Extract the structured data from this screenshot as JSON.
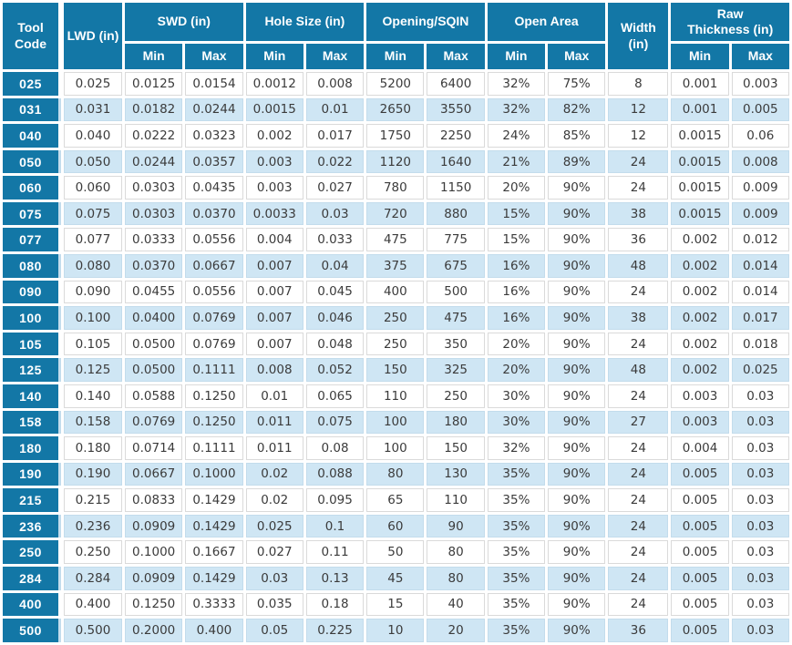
{
  "colors": {
    "header_teal": "#1377a6",
    "row_alt_blue": "#cfe6f4",
    "row_white": "#ffffff",
    "cell_border": "#dadada",
    "data_text": "#3b3b3b",
    "header_text": "#ffffff"
  },
  "table": {
    "header": {
      "tool_code": "Tool Code",
      "lwd": "LWD (in)",
      "swd": "SWD (in)",
      "hole_size": "Hole Size (in)",
      "opening_sqin": "Opening/SQIN",
      "open_area": "Open Area",
      "width": "Width (in)",
      "raw_thickness_line1": "Raw",
      "raw_thickness_line2": "Thickness (in)",
      "min_label": "Min",
      "max_label": "Max"
    },
    "rows": [
      [
        "025",
        "0.025",
        "0.0125",
        "0.0154",
        "0.0012",
        "0.008",
        "5200",
        "6400",
        "32%",
        "75%",
        "8",
        "0.001",
        "0.003"
      ],
      [
        "031",
        "0.031",
        "0.0182",
        "0.0244",
        "0.0015",
        "0.01",
        "2650",
        "3550",
        "32%",
        "82%",
        "12",
        "0.001",
        "0.005"
      ],
      [
        "040",
        "0.040",
        "0.0222",
        "0.0323",
        "0.002",
        "0.017",
        "1750",
        "2250",
        "24%",
        "85%",
        "12",
        "0.0015",
        "0.06"
      ],
      [
        "050",
        "0.050",
        "0.0244",
        "0.0357",
        "0.003",
        "0.022",
        "1120",
        "1640",
        "21%",
        "89%",
        "24",
        "0.0015",
        "0.008"
      ],
      [
        "060",
        "0.060",
        "0.0303",
        "0.0435",
        "0.003",
        "0.027",
        "780",
        "1150",
        "20%",
        "90%",
        "24",
        "0.0015",
        "0.009"
      ],
      [
        "075",
        "0.075",
        "0.0303",
        "0.0370",
        "0.0033",
        "0.03",
        "720",
        "880",
        "15%",
        "90%",
        "38",
        "0.0015",
        "0.009"
      ],
      [
        "077",
        "0.077",
        "0.0333",
        "0.0556",
        "0.004",
        "0.033",
        "475",
        "775",
        "15%",
        "90%",
        "36",
        "0.002",
        "0.012"
      ],
      [
        "080",
        "0.080",
        "0.0370",
        "0.0667",
        "0.007",
        "0.04",
        "375",
        "675",
        "16%",
        "90%",
        "48",
        "0.002",
        "0.014"
      ],
      [
        "090",
        "0.090",
        "0.0455",
        "0.0556",
        "0.007",
        "0.045",
        "400",
        "500",
        "16%",
        "90%",
        "24",
        "0.002",
        "0.014"
      ],
      [
        "100",
        "0.100",
        "0.0400",
        "0.0769",
        "0.007",
        "0.046",
        "250",
        "475",
        "16%",
        "90%",
        "38",
        "0.002",
        "0.017"
      ],
      [
        "105",
        "0.105",
        "0.0500",
        "0.0769",
        "0.007",
        "0.048",
        "250",
        "350",
        "20%",
        "90%",
        "24",
        "0.002",
        "0.018"
      ],
      [
        "125",
        "0.125",
        "0.0500",
        "0.1111",
        "0.008",
        "0.052",
        "150",
        "325",
        "20%",
        "90%",
        "48",
        "0.002",
        "0.025"
      ],
      [
        "140",
        "0.140",
        "0.0588",
        "0.1250",
        "0.01",
        "0.065",
        "110",
        "250",
        "30%",
        "90%",
        "24",
        "0.003",
        "0.03"
      ],
      [
        "158",
        "0.158",
        "0.0769",
        "0.1250",
        "0.011",
        "0.075",
        "100",
        "180",
        "30%",
        "90%",
        "27",
        "0.003",
        "0.03"
      ],
      [
        "180",
        "0.180",
        "0.0714",
        "0.1111",
        "0.011",
        "0.08",
        "100",
        "150",
        "32%",
        "90%",
        "24",
        "0.004",
        "0.03"
      ],
      [
        "190",
        "0.190",
        "0.0667",
        "0.1000",
        "0.02",
        "0.088",
        "80",
        "130",
        "35%",
        "90%",
        "24",
        "0.005",
        "0.03"
      ],
      [
        "215",
        "0.215",
        "0.0833",
        "0.1429",
        "0.02",
        "0.095",
        "65",
        "110",
        "35%",
        "90%",
        "24",
        "0.005",
        "0.03"
      ],
      [
        "236",
        "0.236",
        "0.0909",
        "0.1429",
        "0.025",
        "0.1",
        "60",
        "90",
        "35%",
        "90%",
        "24",
        "0.005",
        "0.03"
      ],
      [
        "250",
        "0.250",
        "0.1000",
        "0.1667",
        "0.027",
        "0.11",
        "50",
        "80",
        "35%",
        "90%",
        "24",
        "0.005",
        "0.03"
      ],
      [
        "284",
        "0.284",
        "0.0909",
        "0.1429",
        "0.03",
        "0.13",
        "45",
        "80",
        "35%",
        "90%",
        "24",
        "0.005",
        "0.03"
      ],
      [
        "400",
        "0.400",
        "0.1250",
        "0.3333",
        "0.035",
        "0.18",
        "15",
        "40",
        "35%",
        "90%",
        "24",
        "0.005",
        "0.03"
      ],
      [
        "500",
        "0.500",
        "0.2000",
        "0.400",
        "0.05",
        "0.225",
        "10",
        "20",
        "35%",
        "90%",
        "36",
        "0.005",
        "0.03"
      ]
    ]
  }
}
